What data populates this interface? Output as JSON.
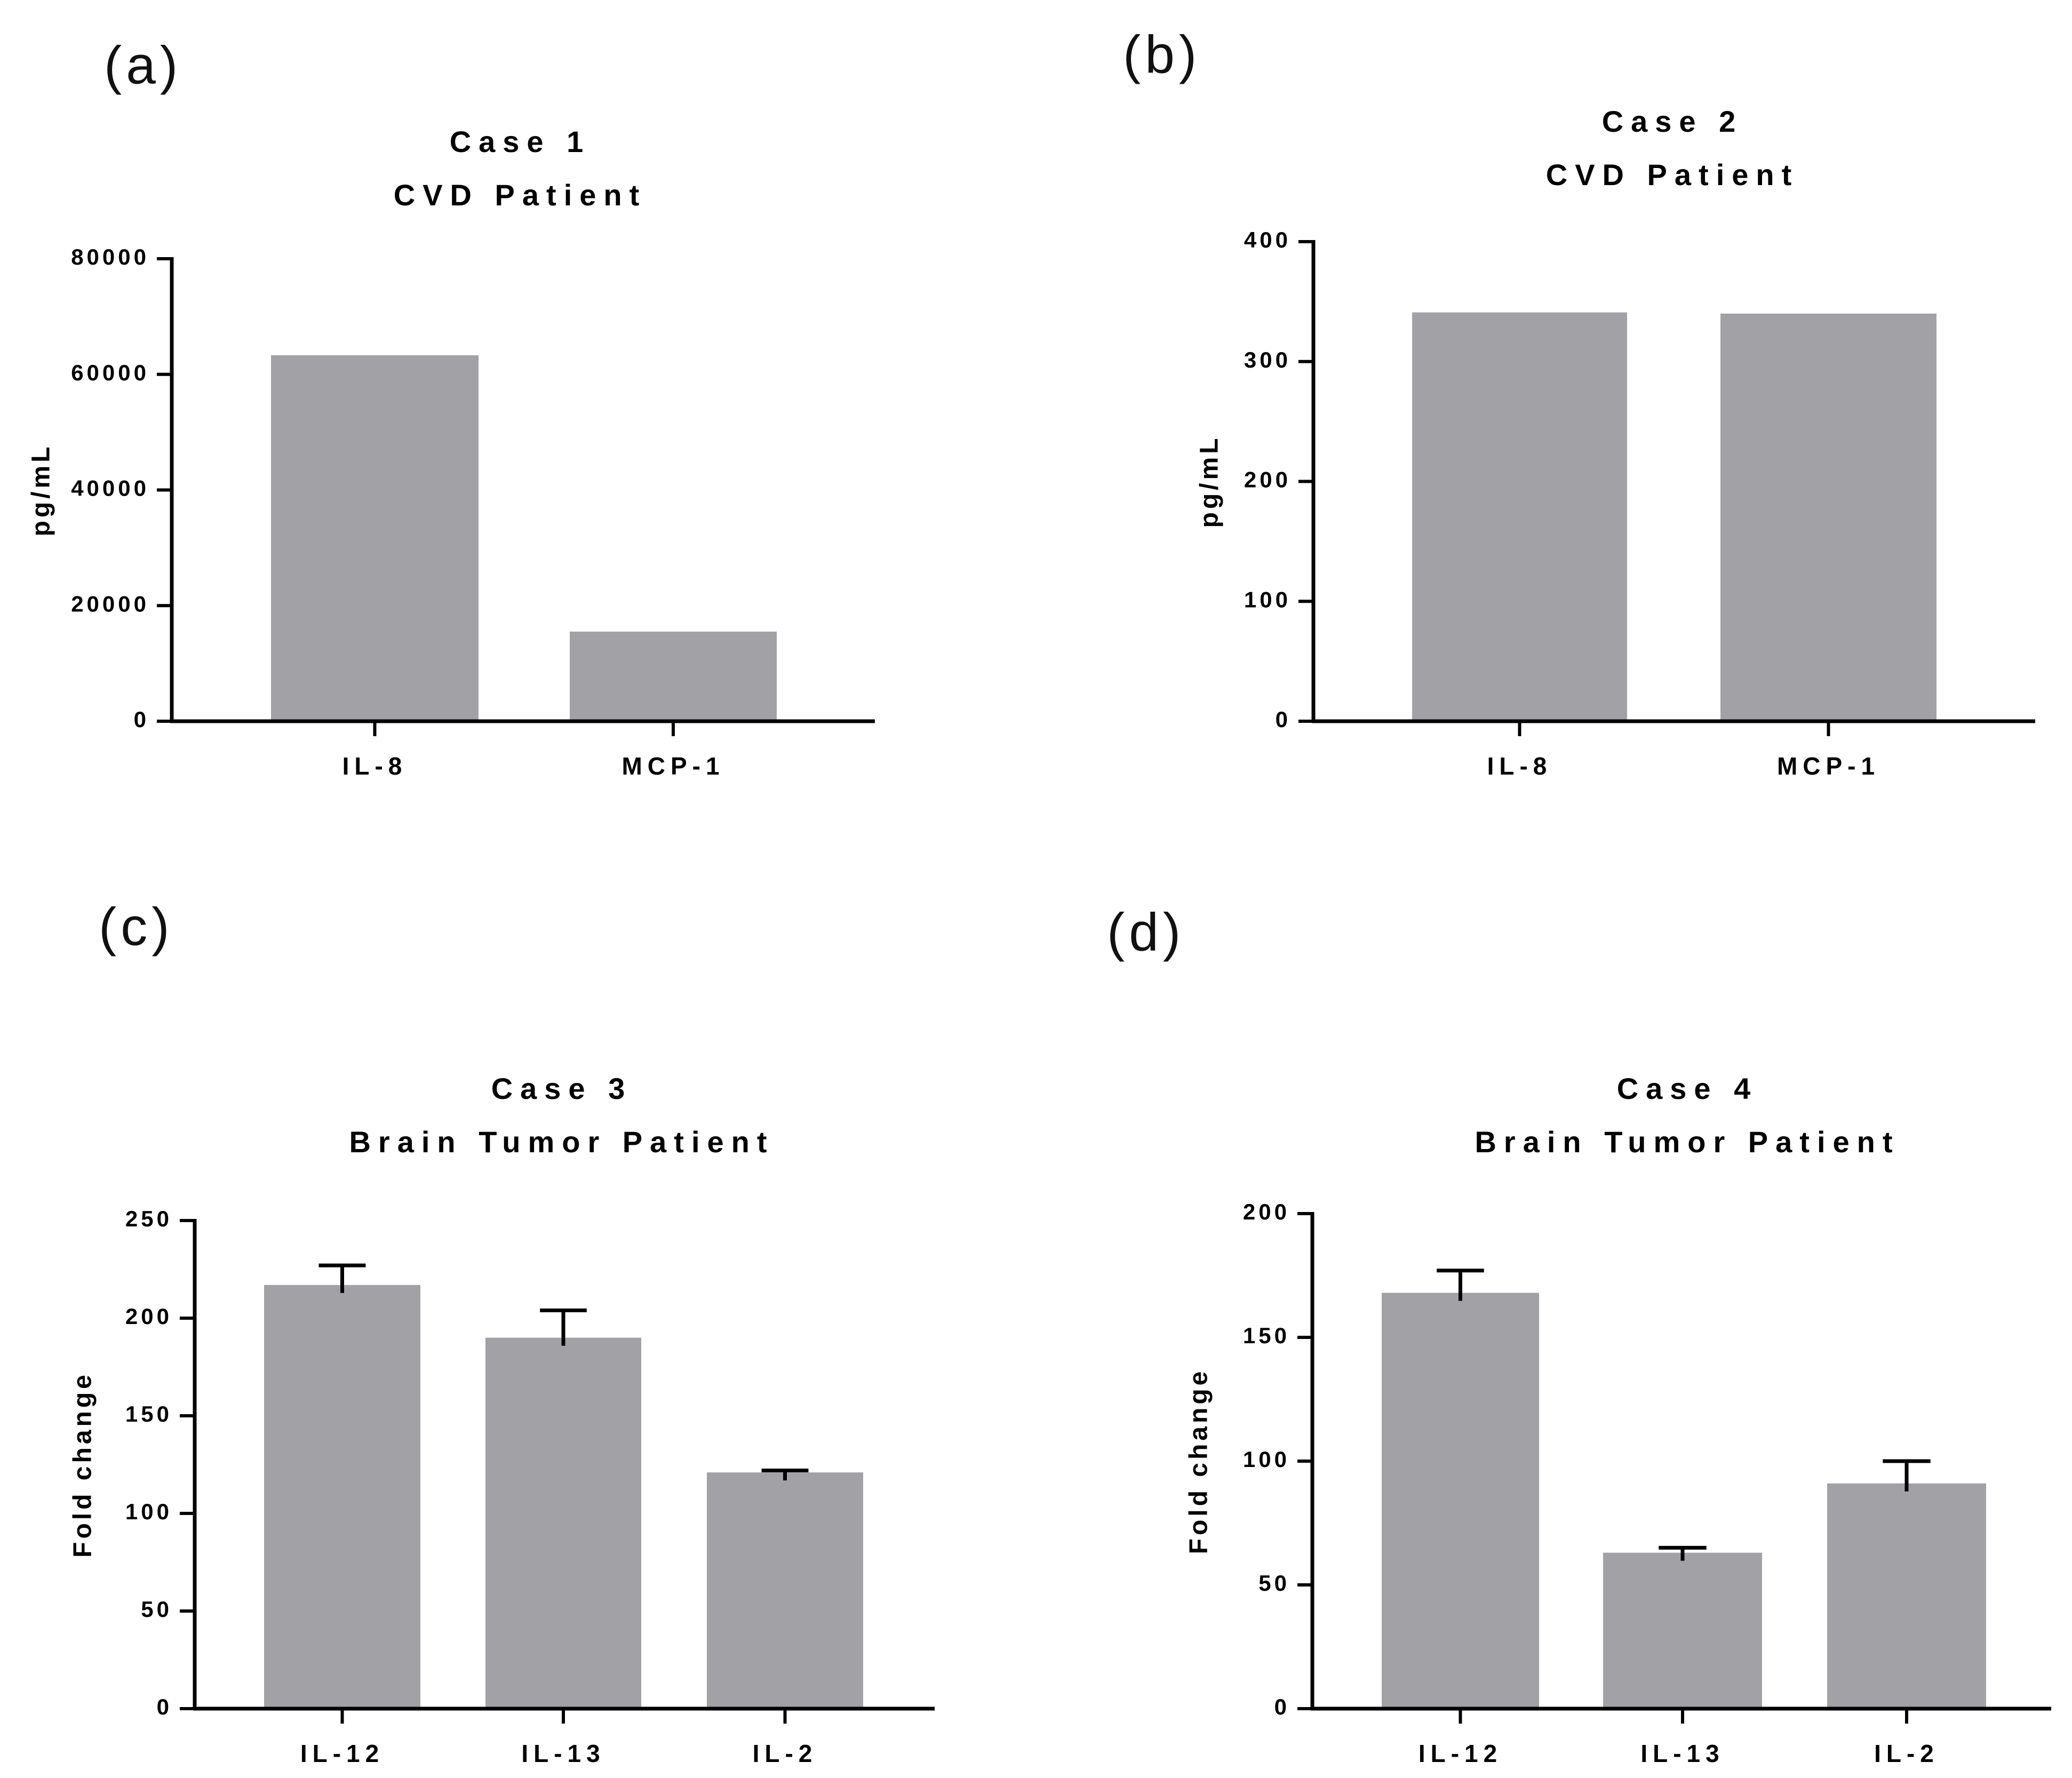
{
  "figure": {
    "bar_color": "#a2a1a6",
    "axis_color": "#000000"
  },
  "chart_data": [
    {
      "panel": "(a)",
      "type": "bar",
      "title": [
        "Case 1",
        "CVD Patient"
      ],
      "ylabel": "pg/mL",
      "xlabel": "",
      "categories": [
        "IL-8",
        "MCP-1"
      ],
      "values": [
        63300,
        15500
      ],
      "errors": null,
      "ylim": [
        0,
        80000
      ],
      "yticks": [
        0,
        20000,
        40000,
        60000,
        80000
      ],
      "ytick_labels": [
        "0",
        "20000",
        "40000",
        "60000",
        "80000"
      ]
    },
    {
      "panel": "(b)",
      "type": "bar",
      "title": [
        "Case 2",
        "CVD Patient"
      ],
      "ylabel": "pg/mL",
      "xlabel": "",
      "categories": [
        "IL-8",
        "MCP-1"
      ],
      "values": [
        341,
        340
      ],
      "errors": null,
      "ylim": [
        0,
        400
      ],
      "yticks": [
        0,
        100,
        200,
        300,
        400
      ],
      "ytick_labels": [
        "0",
        "100",
        "200",
        "300",
        "400"
      ]
    },
    {
      "panel": "(c)",
      "type": "bar",
      "title": [
        "Case 3",
        "Brain Tumor Patient"
      ],
      "ylabel": "Fold change",
      "xlabel": "",
      "categories": [
        "IL-12",
        "IL-13",
        "IL-2"
      ],
      "values": [
        217,
        190,
        121
      ],
      "errors": [
        10,
        14,
        1
      ],
      "ylim": [
        0,
        250
      ],
      "yticks": [
        0,
        50,
        100,
        150,
        200,
        250
      ],
      "ytick_labels": [
        "0",
        "50",
        "100",
        "150",
        "200",
        "250"
      ]
    },
    {
      "panel": "(d)",
      "type": "bar",
      "title": [
        "Case 4",
        "Brain Tumor Patient"
      ],
      "ylabel": "Fold change",
      "xlabel": "",
      "categories": [
        "IL-12",
        "IL-13",
        "IL-2"
      ],
      "values": [
        168,
        63,
        91
      ],
      "errors": [
        9,
        2,
        9
      ],
      "ylim": [
        0,
        200
      ],
      "yticks": [
        0,
        50,
        100,
        150,
        200
      ],
      "ytick_labels": [
        "0",
        "50",
        "100",
        "150",
        "200"
      ]
    }
  ]
}
